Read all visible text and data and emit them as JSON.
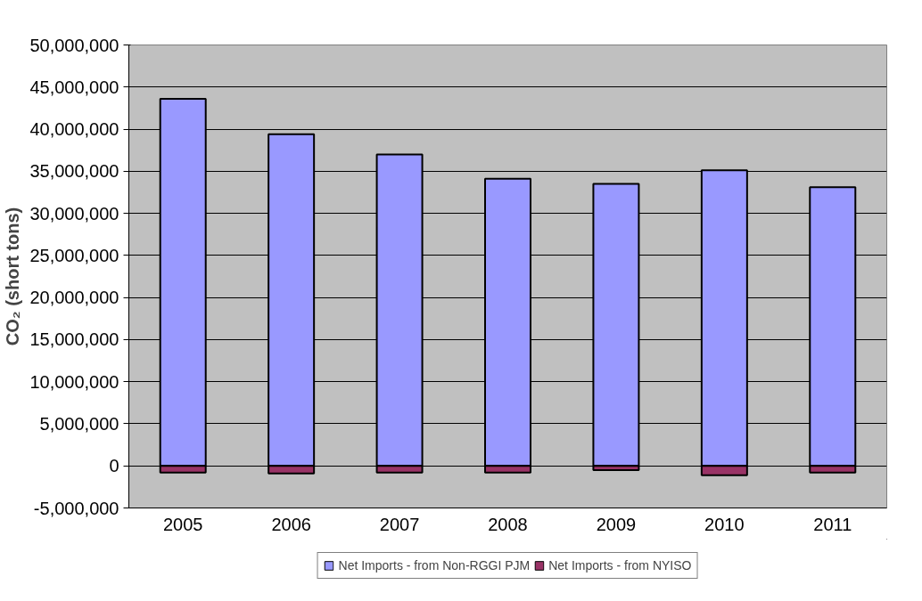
{
  "chart_data": {
    "type": "bar",
    "ylabel": "CO₂ (short tons)",
    "categories": [
      "2005",
      "2006",
      "2007",
      "2008",
      "2009",
      "2010",
      "2011"
    ],
    "stacked": true,
    "series": [
      {
        "name": "Net Imports - from Non-RGGI PJM",
        "color": "#9999ff",
        "values": [
          43600000,
          39400000,
          37000000,
          34100000,
          33500000,
          35100000,
          33100000
        ]
      },
      {
        "name": "Net Imports - from NYISO",
        "color": "#993366",
        "values": [
          -800000,
          -900000,
          -800000,
          -800000,
          -500000,
          -1100000,
          -800000
        ]
      }
    ],
    "ylim": [
      -5000000,
      50000000
    ],
    "yticks": [
      {
        "value": -5000000,
        "label": "-5,000,000"
      },
      {
        "value": 0,
        "label": "0"
      },
      {
        "value": 5000000,
        "label": "5,000,000"
      },
      {
        "value": 10000000,
        "label": "10,000,000"
      },
      {
        "value": 15000000,
        "label": "15,000,000"
      },
      {
        "value": 20000000,
        "label": "20,000,000"
      },
      {
        "value": 25000000,
        "label": "25,000,000"
      },
      {
        "value": 30000000,
        "label": "30,000,000"
      },
      {
        "value": 35000000,
        "label": "35,000,000"
      },
      {
        "value": 40000000,
        "label": "40,000,000"
      },
      {
        "value": 45000000,
        "label": "45,000,000"
      },
      {
        "value": 50000000,
        "label": "50,000,000"
      }
    ],
    "grid": "y",
    "legend": "bottom"
  }
}
